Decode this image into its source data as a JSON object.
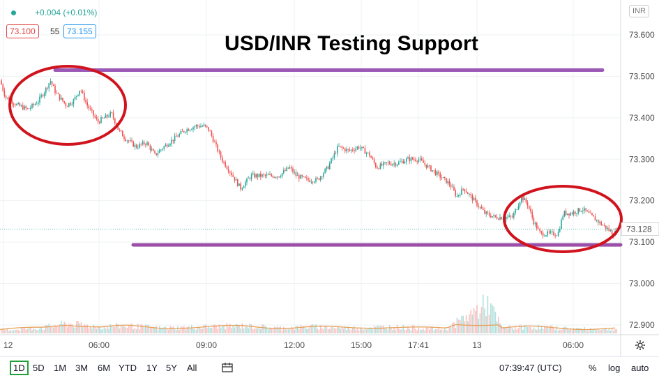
{
  "header": {
    "change": "+0.004 (+0.01%)",
    "bid": "73.100",
    "spread": "55",
    "ask": "73.155",
    "currency": "INR",
    "status_color": "#26a69a"
  },
  "chart_data": {
    "type": "candlestick",
    "title": "USD/INR Testing Support",
    "y_ticks": [
      "73.600",
      "73.500",
      "73.400",
      "73.300",
      "73.200",
      "73.100",
      "73.000",
      "72.900"
    ],
    "ylim": [
      72.88,
      73.665
    ],
    "x_ticks": [
      "12",
      "06:00",
      "09:00",
      "12:00",
      "15:00",
      "17:41",
      "13",
      "06:00"
    ],
    "last_price": "73.128",
    "grid": true,
    "resistance_level": 73.515,
    "support_level": 73.1,
    "price_path": [
      [
        0,
        73.49
      ],
      [
        8,
        73.45
      ],
      [
        25,
        73.43
      ],
      [
        40,
        73.42
      ],
      [
        55,
        73.44
      ],
      [
        66,
        73.47
      ],
      [
        72,
        73.49
      ],
      [
        80,
        73.46
      ],
      [
        95,
        73.43
      ],
      [
        105,
        73.44
      ],
      [
        115,
        73.47
      ],
      [
        125,
        73.43
      ],
      [
        140,
        73.39
      ],
      [
        150,
        73.4
      ],
      [
        160,
        73.41
      ],
      [
        170,
        73.37
      ],
      [
        180,
        73.35
      ],
      [
        195,
        73.33
      ],
      [
        210,
        73.34
      ],
      [
        222,
        73.31
      ],
      [
        235,
        73.33
      ],
      [
        250,
        73.35
      ],
      [
        265,
        73.37
      ],
      [
        280,
        73.38
      ],
      [
        293,
        73.38
      ],
      [
        300,
        73.37
      ],
      [
        310,
        73.33
      ],
      [
        318,
        73.3
      ],
      [
        330,
        73.27
      ],
      [
        345,
        73.23
      ],
      [
        360,
        73.26
      ],
      [
        380,
        73.26
      ],
      [
        400,
        73.26
      ],
      [
        415,
        73.28
      ],
      [
        425,
        73.26
      ],
      [
        440,
        73.25
      ],
      [
        455,
        73.25
      ],
      [
        470,
        73.28
      ],
      [
        485,
        73.33
      ],
      [
        500,
        73.32
      ],
      [
        515,
        73.33
      ],
      [
        530,
        73.31
      ],
      [
        540,
        73.28
      ],
      [
        555,
        73.29
      ],
      [
        570,
        73.29
      ],
      [
        585,
        73.3
      ],
      [
        600,
        73.3
      ],
      [
        615,
        73.28
      ],
      [
        630,
        73.26
      ],
      [
        645,
        73.24
      ],
      [
        655,
        73.21
      ],
      [
        665,
        73.23
      ],
      [
        680,
        73.2
      ],
      [
        695,
        73.17
      ],
      [
        710,
        73.16
      ],
      [
        720,
        73.16
      ],
      [
        735,
        73.16
      ],
      [
        748,
        73.21
      ],
      [
        757,
        73.19
      ],
      [
        765,
        73.15
      ],
      [
        775,
        73.12
      ],
      [
        790,
        73.12
      ],
      [
        800,
        73.12
      ],
      [
        808,
        73.17
      ],
      [
        820,
        73.17
      ],
      [
        835,
        73.18
      ],
      [
        850,
        73.16
      ],
      [
        865,
        73.14
      ],
      [
        880,
        73.12
      ],
      [
        886,
        73.128
      ]
    ],
    "volume_profile": [
      [
        0,
        0.3
      ],
      [
        60,
        0.5
      ],
      [
        95,
        0.9
      ],
      [
        145,
        0.6
      ],
      [
        180,
        0.7
      ],
      [
        230,
        0.5
      ],
      [
        300,
        0.6
      ],
      [
        350,
        0.7
      ],
      [
        400,
        0.5
      ],
      [
        450,
        0.6
      ],
      [
        500,
        0.5
      ],
      [
        560,
        0.6
      ],
      [
        640,
        0.4
      ],
      [
        700,
        2.8
      ],
      [
        720,
        0.5
      ],
      [
        760,
        0.6
      ],
      [
        800,
        0.5
      ],
      [
        840,
        0.4
      ],
      [
        886,
        0.4
      ]
    ]
  },
  "annotations": {
    "resistance_line_color": "#9b59b6",
    "support_line_color": "#9b4fa8",
    "circle_color": "#d0131d"
  },
  "toolbar": {
    "ranges": [
      "1D",
      "5D",
      "1M",
      "3M",
      "6M",
      "YTD",
      "1Y",
      "5Y",
      "All"
    ],
    "active_range": "1D",
    "time": "07:39:47 (UTC)",
    "percent": "%",
    "log": "log",
    "auto": "auto"
  }
}
